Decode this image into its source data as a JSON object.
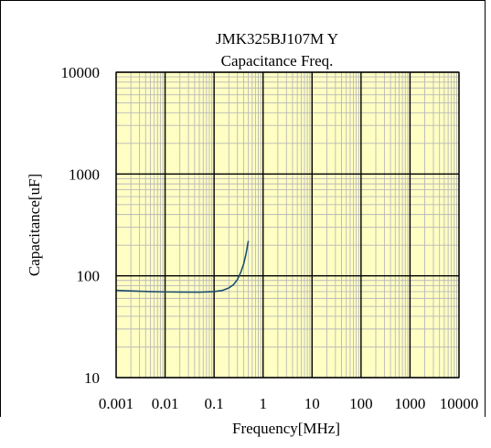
{
  "chart_data": {
    "type": "line",
    "title": "JMK325BJ107M Y",
    "subtitle": "Capacitance Freq.",
    "xlabel": "Frequency[MHz]",
    "ylabel": "Capacitance[uF]",
    "xscale": "log",
    "yscale": "log",
    "xlim": [
      0.001,
      10000
    ],
    "ylim": [
      10,
      10000
    ],
    "x_ticks": [
      0.001,
      0.01,
      0.1,
      1,
      10,
      100,
      1000,
      10000
    ],
    "x_tick_labels": [
      "0.001",
      "0.01",
      "0.1",
      "1",
      "10",
      "100",
      "1000",
      "10000"
    ],
    "y_ticks": [
      10,
      100,
      1000,
      10000
    ],
    "y_tick_labels": [
      "10",
      "100",
      "1000",
      "10000"
    ],
    "grid": true,
    "legend": "none",
    "colors": {
      "plot_background": "#ffffc4",
      "minor_grid": "#b8b8b8",
      "major_grid": "#000000",
      "series": "#1f4e6e"
    },
    "series": [
      {
        "x": [
          0.001,
          0.002,
          0.005,
          0.01,
          0.02,
          0.05,
          0.1,
          0.15,
          0.2,
          0.25,
          0.3,
          0.35,
          0.4,
          0.45,
          0.5
        ],
        "y": [
          72,
          71,
          70,
          69.5,
          69.2,
          69,
          70,
          72,
          76,
          82,
          92,
          108,
          130,
          165,
          220
        ]
      }
    ]
  }
}
